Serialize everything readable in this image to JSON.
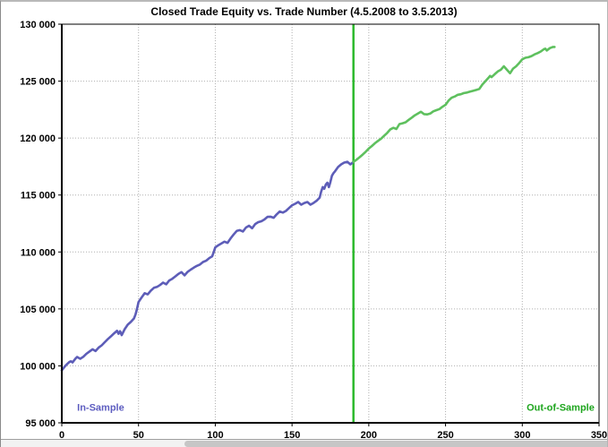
{
  "chart_data": {
    "type": "line",
    "title": "Closed Trade Equity vs. Trade Number (4.5.2008 to 3.5.2013)",
    "xlabel": "",
    "ylabel": "",
    "xlim": [
      0,
      350
    ],
    "ylim": [
      95000,
      130000
    ],
    "grid": "dotted",
    "legend_position": "none",
    "xticks": [
      {
        "value": 0,
        "label": "0"
      },
      {
        "value": 50,
        "label": "50"
      },
      {
        "value": 100,
        "label": "100"
      },
      {
        "value": 150,
        "label": "150"
      },
      {
        "value": 200,
        "label": "200"
      },
      {
        "value": 250,
        "label": "250"
      },
      {
        "value": 300,
        "label": "300"
      },
      {
        "value": 350,
        "label": "350"
      }
    ],
    "yticks": [
      {
        "value": 95000,
        "label": "95 000"
      },
      {
        "value": 100000,
        "label": "100 000"
      },
      {
        "value": 105000,
        "label": "105 000"
      },
      {
        "value": 110000,
        "label": "110 000"
      },
      {
        "value": 115000,
        "label": "115 000"
      },
      {
        "value": 120000,
        "label": "120 000"
      },
      {
        "value": 125000,
        "label": "125 000"
      },
      {
        "value": 130000,
        "label": "130 000"
      }
    ],
    "separator": {
      "x": 190,
      "color": "#2db92d"
    },
    "series": [
      {
        "name": "In-Sample",
        "color": "#5d5db8",
        "points": [
          [
            0,
            99600
          ],
          [
            2,
            99950
          ],
          [
            3,
            100100
          ],
          [
            5,
            100350
          ],
          [
            6,
            100400
          ],
          [
            7,
            100300
          ],
          [
            9,
            100650
          ],
          [
            10,
            100780
          ],
          [
            12,
            100620
          ],
          [
            14,
            100800
          ],
          [
            16,
            101060
          ],
          [
            18,
            101260
          ],
          [
            20,
            101460
          ],
          [
            22,
            101300
          ],
          [
            24,
            101600
          ],
          [
            26,
            101800
          ],
          [
            28,
            102080
          ],
          [
            30,
            102350
          ],
          [
            32,
            102600
          ],
          [
            34,
            102850
          ],
          [
            36,
            103080
          ],
          [
            37,
            102820
          ],
          [
            38,
            103050
          ],
          [
            39,
            102700
          ],
          [
            41,
            103230
          ],
          [
            43,
            103620
          ],
          [
            45,
            103860
          ],
          [
            47,
            104160
          ],
          [
            48,
            104500
          ],
          [
            49,
            105000
          ],
          [
            50,
            105600
          ],
          [
            52,
            106000
          ],
          [
            54,
            106380
          ],
          [
            56,
            106280
          ],
          [
            58,
            106600
          ],
          [
            60,
            106850
          ],
          [
            62,
            106930
          ],
          [
            64,
            107100
          ],
          [
            66,
            107310
          ],
          [
            68,
            107160
          ],
          [
            70,
            107500
          ],
          [
            72,
            107650
          ],
          [
            74,
            107860
          ],
          [
            76,
            108080
          ],
          [
            78,
            108230
          ],
          [
            80,
            107950
          ],
          [
            82,
            108260
          ],
          [
            84,
            108450
          ],
          [
            86,
            108620
          ],
          [
            88,
            108780
          ],
          [
            90,
            108900
          ],
          [
            92,
            109120
          ],
          [
            94,
            109230
          ],
          [
            96,
            109460
          ],
          [
            98,
            109620
          ],
          [
            99,
            110000
          ],
          [
            100,
            110400
          ],
          [
            102,
            110600
          ],
          [
            104,
            110750
          ],
          [
            106,
            110900
          ],
          [
            108,
            110800
          ],
          [
            110,
            111200
          ],
          [
            112,
            111540
          ],
          [
            114,
            111850
          ],
          [
            116,
            111920
          ],
          [
            118,
            111800
          ],
          [
            120,
            112150
          ],
          [
            122,
            112300
          ],
          [
            124,
            112080
          ],
          [
            126,
            112450
          ],
          [
            128,
            112620
          ],
          [
            130,
            112700
          ],
          [
            132,
            112850
          ],
          [
            134,
            113080
          ],
          [
            136,
            113100
          ],
          [
            138,
            113000
          ],
          [
            140,
            113300
          ],
          [
            142,
            113550
          ],
          [
            144,
            113460
          ],
          [
            146,
            113600
          ],
          [
            148,
            113850
          ],
          [
            150,
            114100
          ],
          [
            152,
            114230
          ],
          [
            154,
            114390
          ],
          [
            156,
            114150
          ],
          [
            158,
            114300
          ],
          [
            160,
            114390
          ],
          [
            162,
            114150
          ],
          [
            164,
            114300
          ],
          [
            166,
            114500
          ],
          [
            168,
            114770
          ],
          [
            169,
            115310
          ],
          [
            170,
            115690
          ],
          [
            171,
            115540
          ],
          [
            172,
            115920
          ],
          [
            173,
            116080
          ],
          [
            174,
            115690
          ],
          [
            175,
            116150
          ],
          [
            176,
            116690
          ],
          [
            177,
            116920
          ],
          [
            178,
            117080
          ],
          [
            180,
            117460
          ],
          [
            182,
            117690
          ],
          [
            184,
            117850
          ],
          [
            186,
            117920
          ],
          [
            188,
            117690
          ],
          [
            190,
            117900
          ]
        ]
      },
      {
        "name": "Out-of-Sample",
        "color": "#5ec05e",
        "points": [
          [
            190,
            117900
          ],
          [
            192,
            118100
          ],
          [
            194,
            118320
          ],
          [
            196,
            118550
          ],
          [
            198,
            118800
          ],
          [
            200,
            119080
          ],
          [
            202,
            119300
          ],
          [
            204,
            119550
          ],
          [
            206,
            119750
          ],
          [
            208,
            119950
          ],
          [
            210,
            120200
          ],
          [
            212,
            120450
          ],
          [
            214,
            120770
          ],
          [
            216,
            120900
          ],
          [
            218,
            120800
          ],
          [
            220,
            121230
          ],
          [
            222,
            121300
          ],
          [
            224,
            121390
          ],
          [
            226,
            121600
          ],
          [
            228,
            121800
          ],
          [
            230,
            122000
          ],
          [
            232,
            122150
          ],
          [
            234,
            122310
          ],
          [
            236,
            122100
          ],
          [
            238,
            122080
          ],
          [
            240,
            122150
          ],
          [
            242,
            122350
          ],
          [
            244,
            122450
          ],
          [
            246,
            122540
          ],
          [
            248,
            122750
          ],
          [
            250,
            122920
          ],
          [
            252,
            123300
          ],
          [
            254,
            123540
          ],
          [
            256,
            123650
          ],
          [
            258,
            123800
          ],
          [
            260,
            123850
          ],
          [
            262,
            123950
          ],
          [
            264,
            124000
          ],
          [
            266,
            124080
          ],
          [
            268,
            124150
          ],
          [
            270,
            124230
          ],
          [
            272,
            124310
          ],
          [
            274,
            124700
          ],
          [
            276,
            125000
          ],
          [
            278,
            125300
          ],
          [
            279,
            125460
          ],
          [
            280,
            125350
          ],
          [
            282,
            125600
          ],
          [
            284,
            125850
          ],
          [
            286,
            126000
          ],
          [
            288,
            126300
          ],
          [
            290,
            126000
          ],
          [
            292,
            125690
          ],
          [
            294,
            126100
          ],
          [
            296,
            126300
          ],
          [
            298,
            126600
          ],
          [
            300,
            126920
          ],
          [
            302,
            127050
          ],
          [
            304,
            127100
          ],
          [
            306,
            127200
          ],
          [
            308,
            127350
          ],
          [
            310,
            127460
          ],
          [
            312,
            127600
          ],
          [
            314,
            127800
          ],
          [
            315,
            127850
          ],
          [
            316,
            127690
          ],
          [
            318,
            127900
          ],
          [
            320,
            128000
          ],
          [
            321,
            128000
          ]
        ]
      }
    ],
    "annotations": [
      {
        "text": "In-Sample",
        "color": "#5d5dc0",
        "x": 10,
        "y": 96050,
        "anchor": "start"
      },
      {
        "text": "Out-of-Sample",
        "color": "#1ea51e",
        "x": 347,
        "y": 96050,
        "anchor": "end"
      }
    ]
  }
}
